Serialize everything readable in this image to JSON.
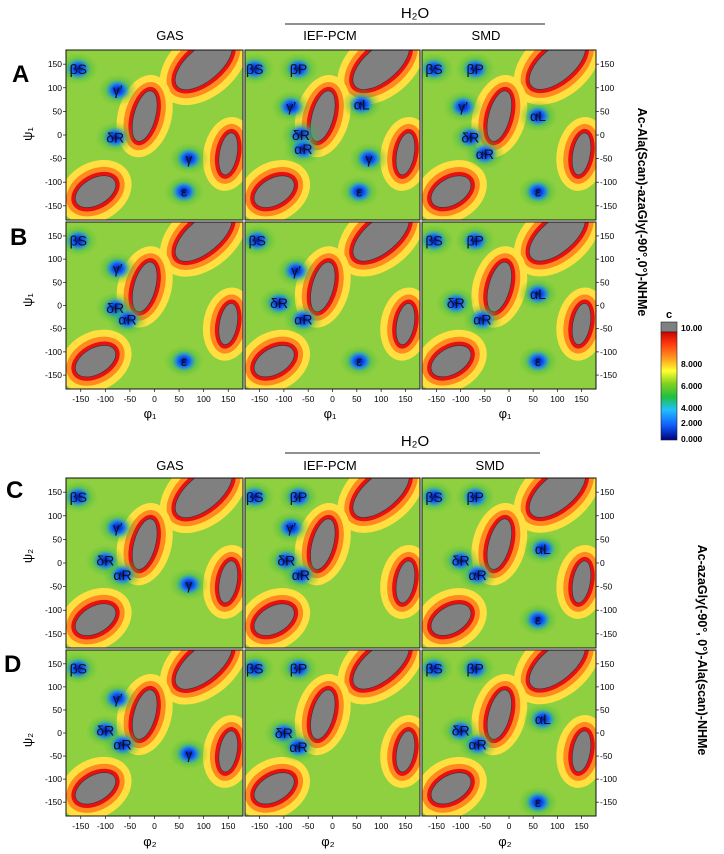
{
  "figure": {
    "panel_letters": [
      "A",
      "B",
      "C",
      "D"
    ],
    "column_headers_top": [
      "GAS",
      "IEF-PCM",
      "SMD"
    ],
    "column_headers_bottom": [
      "GAS",
      "IEF-PCM",
      "SMD"
    ],
    "solvent_label": "H₂O",
    "right_label_top": "Ac-Ala(Scan)-azaGly(-90°,0°)-NHMe",
    "right_label_bottom": "Ac-azaGly(-90°, 0°)-Ala(scan)-NHMe",
    "ylabel_top": "ψ₁",
    "xlabel_top": "φ₁",
    "ylabel_bottom": "ψ₂",
    "xlabel_bottom": "φ₂"
  },
  "colorbar": {
    "label": "c",
    "ticks": [
      "10.00",
      "8.000",
      "6.000",
      "4.000",
      "2.000",
      "0.000"
    ],
    "range": [
      0,
      10
    ],
    "colors": [
      "#000080",
      "#1060ff",
      "#20c0ff",
      "#20c040",
      "#80d020",
      "#ffff30",
      "#ffa020",
      "#ff4010",
      "#d00000"
    ],
    "masked_color": "#808080"
  },
  "chart_data": {
    "type": "heatmap",
    "xlim": [
      -180,
      180
    ],
    "ylim": [
      -180,
      180
    ],
    "x_ticks": [
      "-150",
      "-100",
      "-50",
      "0",
      "50",
      "100",
      "150"
    ],
    "y_ticks": [
      "150",
      "100",
      "50",
      "0",
      "-50",
      "-100",
      "-150"
    ],
    "panels": [
      {
        "row": "A",
        "column": "GAS",
        "labels": [
          {
            "text": "βS",
            "x": -155,
            "y": 140
          },
          {
            "text": "γ′",
            "x": -75,
            "y": 95
          },
          {
            "text": "δR",
            "x": -80,
            "y": -5
          },
          {
            "text": "γ",
            "x": 70,
            "y": -50
          },
          {
            "text": "ε",
            "x": 60,
            "y": -120
          }
        ]
      },
      {
        "row": "A",
        "column": "IEF-PCM",
        "labels": [
          {
            "text": "βS",
            "x": -160,
            "y": 140
          },
          {
            "text": "βP",
            "x": -70,
            "y": 140
          },
          {
            "text": "γ′",
            "x": -85,
            "y": 60
          },
          {
            "text": "αL",
            "x": 60,
            "y": 65
          },
          {
            "text": "δR",
            "x": -65,
            "y": 0
          },
          {
            "text": "αR",
            "x": -60,
            "y": -30
          },
          {
            "text": "γ",
            "x": 75,
            "y": -50
          },
          {
            "text": "ε",
            "x": 55,
            "y": -120
          }
        ]
      },
      {
        "row": "A",
        "column": "SMD",
        "labels": [
          {
            "text": "βS",
            "x": -155,
            "y": 140
          },
          {
            "text": "βP",
            "x": -70,
            "y": 140
          },
          {
            "text": "γ′",
            "x": -95,
            "y": 60
          },
          {
            "text": "αL",
            "x": 60,
            "y": 40
          },
          {
            "text": "δR",
            "x": -80,
            "y": -5
          },
          {
            "text": "αR",
            "x": -50,
            "y": -40
          },
          {
            "text": "ε",
            "x": 60,
            "y": -120
          }
        ]
      },
      {
        "row": "B",
        "column": "GAS",
        "labels": [
          {
            "text": "βS",
            "x": -155,
            "y": 140
          },
          {
            "text": "γ′",
            "x": -75,
            "y": 80
          },
          {
            "text": "δR",
            "x": -80,
            "y": -5
          },
          {
            "text": "αR",
            "x": -55,
            "y": -30
          },
          {
            "text": "ε",
            "x": 60,
            "y": -120
          }
        ]
      },
      {
        "row": "B",
        "column": "IEF-PCM",
        "labels": [
          {
            "text": "βS",
            "x": -155,
            "y": 140
          },
          {
            "text": "γ′",
            "x": -75,
            "y": 75
          },
          {
            "text": "δR",
            "x": -110,
            "y": 5
          },
          {
            "text": "αR",
            "x": -60,
            "y": -30
          },
          {
            "text": "ε",
            "x": 55,
            "y": -120
          }
        ]
      },
      {
        "row": "B",
        "column": "SMD",
        "labels": [
          {
            "text": "βS",
            "x": -155,
            "y": 140
          },
          {
            "text": "βP",
            "x": -70,
            "y": 140
          },
          {
            "text": "αL",
            "x": 60,
            "y": 25
          },
          {
            "text": "δR",
            "x": -110,
            "y": 5
          },
          {
            "text": "αR",
            "x": -55,
            "y": -30
          },
          {
            "text": "ε",
            "x": 60,
            "y": -120
          }
        ]
      },
      {
        "row": "C",
        "column": "GAS",
        "labels": [
          {
            "text": "βS",
            "x": -155,
            "y": 140
          },
          {
            "text": "γ′",
            "x": -75,
            "y": 75
          },
          {
            "text": "δR",
            "x": -100,
            "y": 5
          },
          {
            "text": "αR",
            "x": -65,
            "y": -25
          },
          {
            "text": "γ",
            "x": 70,
            "y": -45
          }
        ]
      },
      {
        "row": "C",
        "column": "IEF-PCM",
        "labels": [
          {
            "text": "βS",
            "x": -160,
            "y": 140
          },
          {
            "text": "βP",
            "x": -70,
            "y": 140
          },
          {
            "text": "γ′",
            "x": -85,
            "y": 75
          },
          {
            "text": "δR",
            "x": -95,
            "y": 5
          },
          {
            "text": "αR",
            "x": -65,
            "y": -25
          }
        ]
      },
      {
        "row": "C",
        "column": "SMD",
        "labels": [
          {
            "text": "βS",
            "x": -155,
            "y": 140
          },
          {
            "text": "βP",
            "x": -70,
            "y": 140
          },
          {
            "text": "αL",
            "x": 70,
            "y": 30
          },
          {
            "text": "δR",
            "x": -100,
            "y": 5
          },
          {
            "text": "αR",
            "x": -65,
            "y": -25
          },
          {
            "text": "ε",
            "x": 60,
            "y": -120
          }
        ]
      },
      {
        "row": "D",
        "column": "GAS",
        "labels": [
          {
            "text": "βS",
            "x": -155,
            "y": 140
          },
          {
            "text": "γ′",
            "x": -75,
            "y": 75
          },
          {
            "text": "δR",
            "x": -100,
            "y": 5
          },
          {
            "text": "αR",
            "x": -65,
            "y": -25
          },
          {
            "text": "γ",
            "x": 70,
            "y": -45
          }
        ]
      },
      {
        "row": "D",
        "column": "IEF-PCM",
        "labels": [
          {
            "text": "βS",
            "x": -160,
            "y": 140
          },
          {
            "text": "βP",
            "x": -70,
            "y": 140
          },
          {
            "text": "δR",
            "x": -100,
            "y": 0
          },
          {
            "text": "αR",
            "x": -70,
            "y": -30
          }
        ]
      },
      {
        "row": "D",
        "column": "SMD",
        "labels": [
          {
            "text": "βS",
            "x": -155,
            "y": 140
          },
          {
            "text": "βP",
            "x": -70,
            "y": 140
          },
          {
            "text": "αL",
            "x": 70,
            "y": 30
          },
          {
            "text": "δR",
            "x": -100,
            "y": 5
          },
          {
            "text": "αR",
            "x": -65,
            "y": -25
          },
          {
            "text": "ε",
            "x": 60,
            "y": -150
          }
        ]
      }
    ]
  }
}
